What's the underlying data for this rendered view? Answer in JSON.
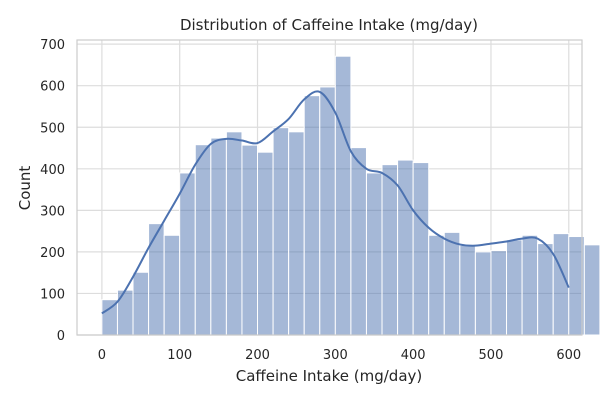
{
  "chart_data": {
    "type": "bar",
    "subtype": "histogram_with_kde",
    "title": "Distribution of Caffeine Intake (mg/day)",
    "xlabel": "Caffeine Intake (mg/day)",
    "ylabel": "Count",
    "xlim": [
      -32,
      617
    ],
    "ylim": [
      0,
      710
    ],
    "x_ticks": [
      0,
      100,
      200,
      300,
      400,
      500,
      600
    ],
    "y_ticks": [
      0,
      100,
      200,
      300,
      400,
      500,
      600,
      700
    ],
    "grid": true,
    "legend": "none",
    "bar_color": "#4c72b0",
    "bar_opacity": 0.5,
    "line_color": "#4c72b0",
    "bins": {
      "start": 0,
      "width": 20,
      "counts": [
        85,
        108,
        151,
        268,
        240,
        390,
        458,
        474,
        489,
        457,
        440,
        499,
        489,
        576,
        597,
        671,
        451,
        390,
        410,
        421,
        415,
        240,
        247,
        216,
        200,
        203,
        229,
        240,
        220,
        244,
        237,
        217
      ]
    },
    "kde": {
      "x": [
        0,
        20,
        40,
        60,
        80,
        100,
        120,
        140,
        160,
        180,
        200,
        220,
        240,
        260,
        280,
        300,
        320,
        340,
        360,
        380,
        400,
        420,
        440,
        460,
        480,
        500,
        520,
        540,
        560,
        580,
        600
      ],
      "y": [
        52,
        80,
        140,
        210,
        275,
        340,
        410,
        460,
        472,
        468,
        462,
        490,
        520,
        567,
        585,
        535,
        442,
        400,
        390,
        360,
        300,
        258,
        232,
        218,
        215,
        220,
        225,
        232,
        232,
        195,
        114
      ]
    }
  }
}
